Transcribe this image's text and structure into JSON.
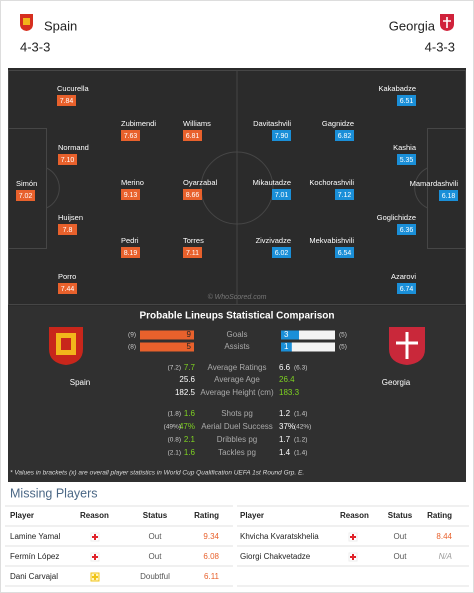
{
  "home": {
    "team": "Spain",
    "formation": "4-3-3"
  },
  "away": {
    "team": "Georgia",
    "formation": "4-3-3"
  },
  "lineups": {
    "home": [
      {
        "name": "Cucurella",
        "rating": "7.84"
      },
      {
        "name": "Zubimendi",
        "rating": "7.63"
      },
      {
        "name": "Williams",
        "rating": "6.81"
      },
      {
        "name": "Normand",
        "rating": "7.10"
      },
      {
        "name": "Simón",
        "rating": "7.02"
      },
      {
        "name": "Merino",
        "rating": "9.13"
      },
      {
        "name": "Oyarzabal",
        "rating": "8.66"
      },
      {
        "name": "Huijsen",
        "rating": "7.8"
      },
      {
        "name": "Pedri",
        "rating": "8.19"
      },
      {
        "name": "Torres",
        "rating": "7.11"
      },
      {
        "name": "Porro",
        "rating": "7.44"
      }
    ],
    "away": [
      {
        "name": "Kakabadze",
        "rating": "6.51"
      },
      {
        "name": "Davitashvili",
        "rating": "7.90"
      },
      {
        "name": "Gagnidze",
        "rating": "6.82"
      },
      {
        "name": "Kashia",
        "rating": "5.35"
      },
      {
        "name": "Mamardashvili",
        "rating": "6.18"
      },
      {
        "name": "Mikautadze",
        "rating": "7.01"
      },
      {
        "name": "Kochorashvili",
        "rating": "7.12"
      },
      {
        "name": "Goglichidze",
        "rating": "6.36"
      },
      {
        "name": "Zivzivadze",
        "rating": "6.02"
      },
      {
        "name": "Mekvabishvili",
        "rating": "6.54"
      },
      {
        "name": "Azarovi",
        "rating": "6.74"
      }
    ]
  },
  "watermark": "© WhoScored.com",
  "comparison": {
    "title": "Probable Lineups Statistical Comparison",
    "bars": [
      {
        "label": "Goals",
        "home_overall": "(9)",
        "home": 9,
        "away": 3,
        "away_overall": "(5)"
      },
      {
        "label": "Assists",
        "home_overall": "(8)",
        "home": 5,
        "away": 1,
        "away_overall": "(5)"
      }
    ],
    "rows": [
      {
        "label": "Average Ratings",
        "home_overall": "(7.2)",
        "home": "7.7",
        "away": "6.6",
        "away_overall": "(6.3)"
      },
      {
        "label": "Average Age",
        "home": "25.6",
        "away": "26.4"
      },
      {
        "label": "Average Height (cm)",
        "home": "182.5",
        "away": "183.3"
      },
      {
        "label": "Shots pg",
        "home_overall": "(1.8)",
        "home": "1.6",
        "away": "1.2",
        "away_overall": "(1.4)"
      },
      {
        "label": "Aerial Duel Success",
        "home_overall": "(49%)",
        "home": "47%",
        "away": "37%",
        "away_overall": "(42%)"
      },
      {
        "label": "Dribbles pg",
        "home_overall": "(0.8)",
        "home": "2.1",
        "away": "1.7",
        "away_overall": "(1.2)"
      },
      {
        "label": "Tackles pg",
        "home_overall": "(2.1)",
        "home": "1.6",
        "away": "1.4",
        "away_overall": "(1.4)"
      }
    ],
    "footnote": "* Values in brackets (x) are overall player statistics in World Cup Qualification UEFA 1st Round Grp. E."
  },
  "missing": {
    "title": "Missing Players",
    "headers": [
      "Player",
      "Reason",
      "Status",
      "Rating"
    ],
    "home": [
      {
        "player": "Lamine Yamal",
        "status": "Out",
        "rating": "9.34"
      },
      {
        "player": "Fermín López",
        "status": "Out",
        "rating": "6.08"
      },
      {
        "player": "Dani Carvajal",
        "status": "Doubtful",
        "rating": "6.11"
      }
    ],
    "away": [
      {
        "player": "Khvicha Kvaratskhelia",
        "status": "Out",
        "rating": "8.44"
      },
      {
        "player": "Giorgi Chakvetadze",
        "status": "Out",
        "rating": "N/A"
      }
    ]
  }
}
